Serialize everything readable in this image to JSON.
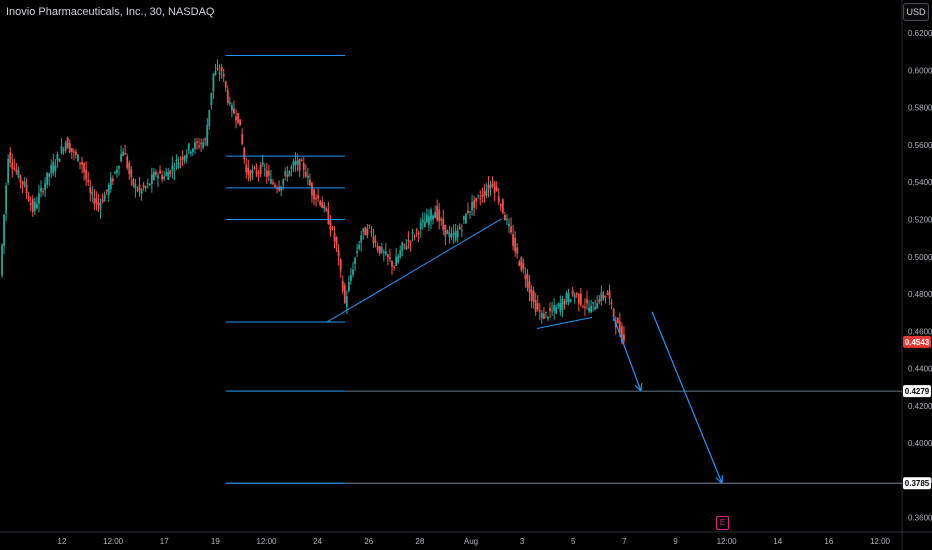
{
  "header": {
    "title": "Inovio Pharmaceuticals, Inc., 30, NASDAQ",
    "currency": "USD",
    "earnings_marker": "E"
  },
  "colors": {
    "background": "#000000",
    "up": "#26a69a",
    "down": "#ef5350",
    "drawing": "#2196f3",
    "price_label_bg": "#e53935",
    "level_label_bg": "#ffffff"
  },
  "chart_data": {
    "type": "candlestick",
    "ylim": [
      0.3566,
      0.6292
    ],
    "y_ticks": [
      "0.6200",
      "0.6000",
      "0.5800",
      "0.5600",
      "0.5400",
      "0.5200",
      "0.5000",
      "0.4800",
      "0.4600",
      "0.4400",
      "0.4200",
      "0.4000",
      "0.3800",
      "0.3600"
    ],
    "x_ticks": [
      "12",
      "12:00",
      "17",
      "19",
      "12:00",
      "24",
      "26",
      "28",
      "Aug",
      "3",
      "5",
      "7",
      "9",
      "12:00",
      "14",
      "16",
      "12:00"
    ],
    "price_labels": [
      {
        "value": "0.4543",
        "kind": "last-price"
      },
      {
        "value": "0.4279",
        "kind": "level"
      },
      {
        "value": "0.3785",
        "kind": "level"
      }
    ],
    "series": [
      {
        "name": "",
        "x_range": [
          "12",
          "7"
        ],
        "open_close_path": [
          0.49,
          0.555,
          0.545,
          0.538,
          0.525,
          0.535,
          0.545,
          0.553,
          0.562,
          0.555,
          0.55,
          0.533,
          0.528,
          0.535,
          0.545,
          0.558,
          0.54,
          0.535,
          0.538,
          0.545,
          0.543,
          0.548,
          0.553,
          0.558,
          0.56,
          0.562,
          0.598,
          0.6,
          0.58,
          0.575,
          0.545,
          0.545,
          0.548,
          0.54,
          0.538,
          0.545,
          0.55,
          0.548,
          0.535,
          0.53,
          0.52,
          0.505,
          0.475,
          0.495,
          0.512,
          0.515,
          0.505,
          0.5,
          0.495,
          0.505,
          0.51,
          0.515,
          0.52,
          0.525,
          0.515,
          0.51,
          0.515,
          0.525,
          0.53,
          0.535,
          0.54,
          0.528,
          0.515,
          0.5,
          0.49,
          0.475,
          0.468,
          0.47,
          0.473,
          0.478,
          0.48,
          0.475,
          0.472,
          0.478,
          0.48,
          0.465,
          0.455
        ],
        "note": ""
      }
    ],
    "levels": [
      "0.6080",
      "0.5540",
      "0.5370",
      "0.5200",
      "0.4650",
      "0.4279",
      "0.3785"
    ]
  }
}
